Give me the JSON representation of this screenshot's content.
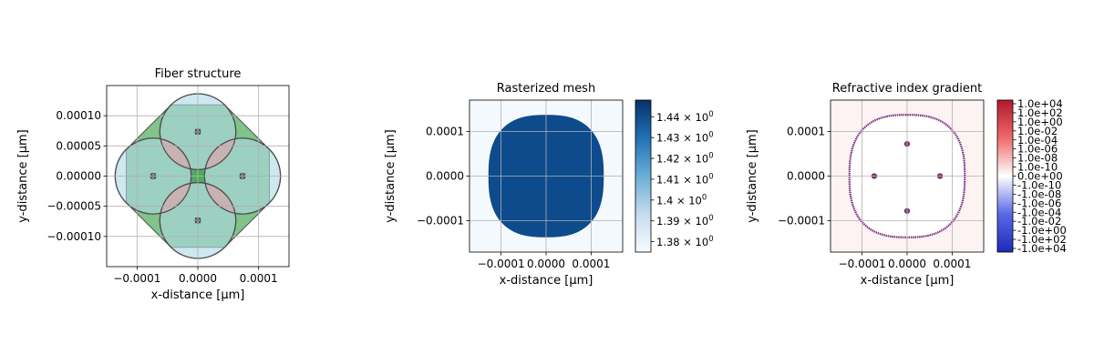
{
  "chart_data": [
    {
      "type": "scatter",
      "title": "Fiber structure",
      "xlabel": "x-distance [μm]",
      "ylabel": "y-distance [μm]",
      "xlim": [
        -0.00015,
        0.00015
      ],
      "ylim": [
        -0.00015,
        0.00015
      ],
      "grid": true,
      "xticks": [
        -0.0001,
        0.0,
        0.0001
      ],
      "xtick_labels": [
        "−0.0001",
        "0.0000",
        "0.0001"
      ],
      "yticks": [
        0.0001,
        5e-05,
        0.0,
        -5e-05,
        -0.0001
      ],
      "ytick_labels": [
        "0.00010",
        "0.00005",
        "0.00000",
        "−0.00005",
        "−0.00010"
      ],
      "cladding_circles": [
        {
          "x": 0.0,
          "y": 7.35e-05,
          "r": 6.25e-05
        },
        {
          "x": -7.35e-05,
          "y": 0.0,
          "r": 6.25e-05
        },
        {
          "x": 7.35e-05,
          "y": 0.0,
          "r": 6.25e-05
        },
        {
          "x": 0.0,
          "y": -7.35e-05,
          "r": 6.25e-05
        }
      ],
      "core_points": [
        {
          "x": 0.0,
          "y": 7.35e-05
        },
        {
          "x": -7.35e-05,
          "y": 0.0
        },
        {
          "x": 7.35e-05,
          "y": 0.0
        },
        {
          "x": 0.0,
          "y": -7.35e-05
        }
      ],
      "colors": {
        "cladding": "#add8e6",
        "overlap": "#d7a3a3",
        "filler": "#2e9a3e",
        "edge": "#4d4d4d"
      }
    },
    {
      "type": "heatmap",
      "title": "Rasterized mesh",
      "xlabel": "x-distance [μm]",
      "ylabel": "y-distance [μm]",
      "xlim": [
        -0.00017,
        0.00017
      ],
      "ylim": [
        -0.00017,
        0.00017
      ],
      "grid": true,
      "xticks": [
        -0.0001,
        0.0,
        0.0001
      ],
      "xtick_labels": [
        "−0.0001",
        "0.0000",
        "0.0001"
      ],
      "yticks": [
        0.0001,
        0.0,
        -0.0001
      ],
      "ytick_labels": [
        "0.0001",
        "0.0000",
        "−0.0001"
      ],
      "inside_value": 1.4467,
      "outside_value": 1.3755,
      "colormap": "Blues",
      "colorbar": {
        "range": [
          1.375,
          1.448
        ],
        "ticks": [
          1.44,
          1.43,
          1.42,
          1.41,
          1.4,
          1.39,
          1.38
        ],
        "tick_labels": [
          "1.44",
          "1.43",
          "1.42",
          "1.41",
          "1.4",
          "1.39",
          "1.38"
        ],
        "exponent": "0",
        "base": "10"
      }
    },
    {
      "type": "heatmap",
      "title": "Refractive index gradient",
      "xlabel": "x-distance [μm]",
      "ylabel": "y-distance [μm]",
      "xlim": [
        -0.00017,
        0.00017
      ],
      "ylim": [
        -0.00017,
        0.00017
      ],
      "grid": true,
      "xticks": [
        -0.0001,
        0.0,
        0.0001
      ],
      "xtick_labels": [
        "−0.0001",
        "0.0000",
        "0.0001"
      ],
      "yticks": [
        0.0001,
        0.0,
        -0.0001
      ],
      "ytick_labels": [
        "0.0001",
        "0.0000",
        "−0.0001"
      ],
      "colormap": "seismic (symlog)",
      "core_points": [
        {
          "x": 0.0,
          "y": 7.2e-05
        },
        {
          "x": -7.3e-05,
          "y": 0.0
        },
        {
          "x": 7.3e-05,
          "y": 0.0
        },
        {
          "x": 0.0,
          "y": -7.8e-05
        }
      ],
      "colorbar": {
        "tick_labels_positive": [
          "1.0e+04",
          "1.0e+02",
          "1.0e+00",
          "1.0e-02",
          "1.0e-04",
          "1.0e-06",
          "1.0e-08",
          "1.0e-10"
        ],
        "zero_label": "0.0e+00",
        "tick_labels_negative": [
          "-1.0e-10",
          "-1.0e-08",
          "-1.0e-06",
          "-1.0e-04",
          "-1.0e-02",
          "-1.0e+00",
          "-1.0e+02",
          "-1.0e+04"
        ],
        "colors": {
          "max": "#b2182b",
          "mid": "#ffffff",
          "min": "#1c2bb8"
        }
      }
    }
  ]
}
